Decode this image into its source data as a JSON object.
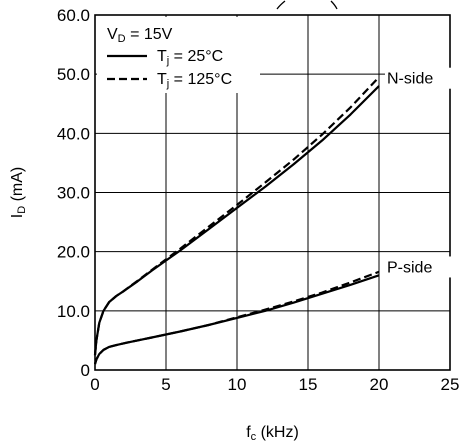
{
  "chart_data": {
    "type": "line",
    "title": "",
    "xlabel": {
      "main": "f",
      "sub": "c",
      "unit": " (kHz)"
    },
    "ylabel": {
      "main": "I",
      "sub": "D",
      "unit": " (mA)"
    },
    "xlim": [
      0,
      25
    ],
    "ylim": [
      0,
      60
    ],
    "x_ticks": [
      "0",
      "5",
      "10",
      "15",
      "20",
      "25"
    ],
    "y_ticks": [
      "0",
      "10.0",
      "20.0",
      "30.0",
      "40.0",
      "50.0",
      "60.0"
    ],
    "grid": true,
    "legend": {
      "placement": "top-left",
      "condition": {
        "main": "V",
        "sub": "D",
        "rest": " = 15V"
      },
      "entries": [
        {
          "main": "T",
          "sub": "j",
          "rest": " = 25°C",
          "style": "solid"
        },
        {
          "main": "T",
          "sub": "j",
          "rest": " = 125°C",
          "style": "dashed"
        }
      ]
    },
    "annotations": [
      "N-side",
      "P-side"
    ],
    "series": [
      {
        "group": "N-side",
        "condition": "Tj = 25°C",
        "style": "solid",
        "x": [
          0,
          0.1,
          0.3,
          0.6,
          1,
          1.5,
          2,
          3,
          4,
          5,
          6,
          8,
          10,
          12,
          14,
          16,
          18,
          20
        ],
        "y": [
          2.5,
          5,
          8,
          10,
          11.5,
          12.5,
          13.3,
          15,
          16.8,
          18.5,
          20.2,
          23.8,
          27.4,
          31,
          34.8,
          38.8,
          43.2,
          48
        ]
      },
      {
        "group": "N-side",
        "condition": "Tj = 125°C",
        "style": "dashed",
        "x": [
          0,
          0.1,
          0.3,
          0.6,
          1,
          1.5,
          2,
          3,
          4,
          5,
          6,
          8,
          10,
          12,
          14,
          16,
          18,
          20
        ],
        "y": [
          2.5,
          5,
          8,
          10,
          11.5,
          12.5,
          13.3,
          15.1,
          16.9,
          18.7,
          20.5,
          24.2,
          27.9,
          31.7,
          35.6,
          39.8,
          44.4,
          49.5
        ]
      },
      {
        "group": "P-side",
        "condition": "Tj = 25°C",
        "style": "solid",
        "x": [
          0,
          0.1,
          0.3,
          0.6,
          1,
          1.5,
          2,
          3,
          4,
          5,
          6,
          8,
          10,
          12,
          14,
          16,
          18,
          20
        ],
        "y": [
          1,
          1.8,
          2.7,
          3.4,
          3.9,
          4.2,
          4.5,
          5,
          5.5,
          6,
          6.5,
          7.6,
          8.8,
          10,
          11.4,
          12.9,
          14.4,
          16
        ]
      },
      {
        "group": "P-side",
        "condition": "Tj = 125°C",
        "style": "dashed",
        "x": [
          0,
          0.1,
          0.3,
          0.6,
          1,
          1.5,
          2,
          3,
          4,
          5,
          6,
          8,
          10,
          12,
          14,
          16,
          18,
          20
        ],
        "y": [
          1,
          1.8,
          2.7,
          3.4,
          3.9,
          4.2,
          4.5,
          5,
          5.5,
          6,
          6.5,
          7.6,
          8.9,
          10.2,
          11.6,
          13.1,
          14.8,
          16.6
        ]
      }
    ]
  }
}
